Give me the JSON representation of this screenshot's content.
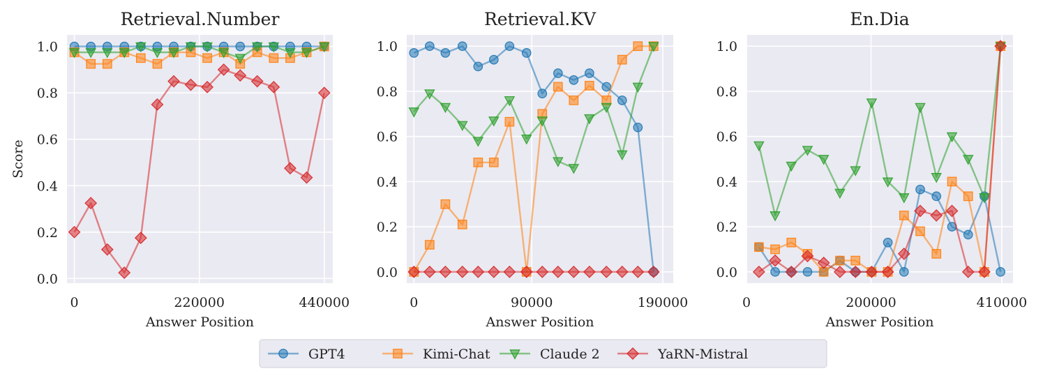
{
  "legend": {
    "placement": "bottom-center",
    "entries": [
      {
        "name": "GPT4",
        "color": "#1f77b4",
        "marker": "circle"
      },
      {
        "name": "Kimi-Chat",
        "color": "#ff7f0e",
        "marker": "square"
      },
      {
        "name": "Claude 2",
        "color": "#2ca02c",
        "marker": "triangle-down"
      },
      {
        "name": "YaRN-Mistral",
        "color": "#d62728",
        "marker": "diamond"
      }
    ]
  },
  "chart_data": [
    {
      "type": "line",
      "title": "Retrieval.Number",
      "xlabel": "Answer Position",
      "ylabel": "Score",
      "xlim": [
        -13000,
        455000
      ],
      "ylim": [
        -0.02,
        1.05
      ],
      "xticks": [
        0,
        220000,
        440000
      ],
      "xtick_labels": [
        "0",
        "220000",
        "440000"
      ],
      "yticks": [
        0.0,
        0.2,
        0.4,
        0.6,
        0.8,
        1.0
      ],
      "ytick_labels": [
        "0.0",
        "0.2",
        "0.4",
        "0.6",
        "0.8",
        "1.0"
      ],
      "grid": true,
      "x": [
        0,
        29000,
        58000,
        88000,
        117000,
        146000,
        175000,
        205000,
        234000,
        263000,
        292000,
        322000,
        351000,
        380000,
        409000,
        440000
      ],
      "series": [
        {
          "name": "GPT4",
          "values": [
            1.0,
            1.0,
            1.0,
            1.0,
            1.0,
            1.0,
            1.0,
            1.0,
            1.0,
            1.0,
            1.0,
            1.0,
            1.0,
            1.0,
            1.0,
            1.0
          ]
        },
        {
          "name": "Kimi-Chat",
          "values": [
            0.975,
            0.925,
            0.925,
            0.975,
            0.95,
            0.925,
            0.975,
            0.975,
            0.95,
            0.975,
            0.925,
            0.975,
            0.95,
            0.95,
            0.975,
            1.0
          ]
        },
        {
          "name": "Claude 2",
          "values": [
            0.975,
            0.975,
            0.975,
            0.975,
            1.0,
            0.975,
            0.975,
            1.0,
            1.0,
            0.975,
            0.95,
            1.0,
            1.0,
            0.975,
            0.975,
            1.0
          ]
        },
        {
          "name": "YaRN-Mistral",
          "values": [
            0.2,
            0.325,
            0.125,
            0.025,
            0.175,
            0.75,
            0.85,
            0.835,
            0.825,
            0.9,
            0.875,
            0.85,
            0.825,
            0.475,
            0.435,
            0.8
          ]
        }
      ]
    },
    {
      "type": "line",
      "title": "Retrieval.KV",
      "xlabel": "Answer Position",
      "ylabel": "",
      "xlim": [
        -5500,
        198000
      ],
      "ylim": [
        -0.05,
        1.05
      ],
      "xticks": [
        0,
        90000,
        190000
      ],
      "xtick_labels": [
        "0",
        "90000",
        "190000"
      ],
      "yticks": [
        0.0,
        0.2,
        0.4,
        0.6,
        0.8,
        1.0
      ],
      "ytick_labels": [
        "0.0",
        "0.2",
        "0.4",
        "0.6",
        "0.8",
        "1.0"
      ],
      "grid": true,
      "x": [
        0,
        12000,
        24000,
        37000,
        49000,
        61000,
        73000,
        86000,
        98000,
        110000,
        122000,
        134000,
        147000,
        159000,
        171000,
        183000
      ],
      "series": [
        {
          "name": "GPT4",
          "values": [
            0.97,
            1.0,
            0.97,
            1.0,
            0.91,
            0.94,
            1.0,
            0.97,
            0.79,
            0.88,
            0.85,
            0.88,
            0.82,
            0.76,
            0.64,
            0.0
          ]
        },
        {
          "name": "Kimi-Chat",
          "values": [
            0.0,
            0.12,
            0.3,
            0.21,
            0.485,
            0.485,
            0.665,
            0.0,
            0.7,
            0.82,
            0.76,
            0.825,
            0.76,
            0.94,
            1.0,
            1.0
          ]
        },
        {
          "name": "Claude 2",
          "values": [
            0.71,
            0.79,
            0.73,
            0.65,
            0.58,
            0.67,
            0.76,
            0.59,
            0.67,
            0.49,
            0.46,
            0.68,
            0.73,
            0.52,
            0.82,
            1.0
          ]
        },
        {
          "name": "YaRN-Mistral",
          "values": [
            0.0,
            0.0,
            0.0,
            0.0,
            0.0,
            0.0,
            0.0,
            0.0,
            0.0,
            0.0,
            0.0,
            0.0,
            0.0,
            0.0,
            0.0,
            0.0
          ]
        }
      ]
    },
    {
      "type": "line",
      "title": "En.Dia",
      "xlabel": "Answer Position",
      "ylabel": "",
      "xlim": [
        0,
        428000
      ],
      "ylim": [
        -0.05,
        1.05
      ],
      "xticks": [
        0,
        200000,
        410000
      ],
      "xtick_labels": [
        "0",
        "200000",
        "410000"
      ],
      "grid": true,
      "yticks": [
        0.0,
        0.2,
        0.4,
        0.6,
        0.8,
        1.0
      ],
      "ytick_labels": [
        "0.0",
        "0.2",
        "0.4",
        "0.6",
        "0.8",
        "1.0"
      ],
      "series": [
        {
          "name": "GPT4",
          "x": [
            20000,
            46000,
            72000,
            98000,
            124000,
            150000,
            175000,
            201000,
            227000,
            253000,
            279000,
            305000,
            330000,
            356000,
            382000,
            408000
          ],
          "values": [
            0.11,
            0.0,
            0.0,
            0.0,
            0.0,
            0.05,
            0.0,
            0.0,
            0.13,
            0.0,
            0.365,
            0.335,
            0.2,
            0.165,
            0.335,
            0.0
          ]
        },
        {
          "name": "Kimi-Chat",
          "x": [
            20000,
            46000,
            72000,
            98000,
            124000,
            150000,
            175000,
            201000,
            227000,
            253000,
            279000,
            305000,
            330000,
            356000,
            382000,
            408000
          ],
          "values": [
            0.11,
            0.1,
            0.13,
            0.08,
            0.0,
            0.05,
            0.05,
            0.0,
            0.0,
            0.25,
            0.18,
            0.08,
            0.4,
            0.335,
            0.0,
            1.0
          ]
        },
        {
          "name": "Claude 2",
          "x": [
            20000,
            46000,
            72000,
            98000,
            124000,
            150000,
            175000,
            201000,
            227000,
            253000,
            279000,
            305000,
            330000,
            356000,
            382000,
            408000
          ],
          "values": [
            0.56,
            0.25,
            0.47,
            0.54,
            0.5,
            0.35,
            0.45,
            0.75,
            0.4,
            0.33,
            0.73,
            0.42,
            0.6,
            0.5,
            0.33,
            1.0
          ]
        },
        {
          "name": "YaRN-Mistral",
          "x": [
            20000,
            46000,
            72000,
            98000,
            124000,
            150000,
            175000,
            201000,
            227000,
            253000,
            279000,
            305000,
            330000,
            356000,
            382000,
            408000
          ],
          "values": [
            0.0,
            0.05,
            0.0,
            0.07,
            0.04,
            0.0,
            0.0,
            0.0,
            0.0,
            0.08,
            0.27,
            0.25,
            0.27,
            0.0,
            0.0,
            1.0
          ]
        }
      ]
    }
  ]
}
